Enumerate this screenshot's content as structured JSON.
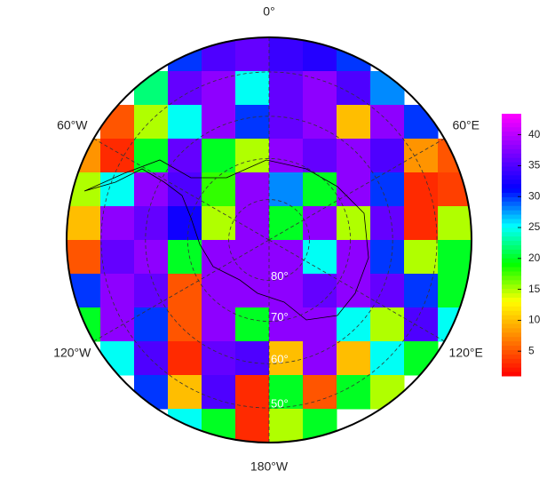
{
  "chart_data": {
    "type": "polar-heatmap",
    "grid": [
      [
        null,
        null,
        null,
        30,
        35,
        36,
        34,
        33,
        30,
        null,
        null,
        null
      ],
      [
        null,
        null,
        22,
        36,
        38,
        25,
        36,
        38,
        35,
        28,
        null,
        null
      ],
      [
        null,
        5,
        15,
        25,
        38,
        30,
        36,
        38,
        10,
        38,
        30,
        null
      ],
      [
        8,
        3,
        20,
        36,
        20,
        15,
        38,
        36,
        38,
        35,
        8,
        5
      ],
      [
        15,
        25,
        38,
        35,
        18,
        38,
        28,
        20,
        38,
        30,
        3,
        4
      ],
      [
        10,
        38,
        36,
        32,
        15,
        38,
        20,
        38,
        15,
        36,
        3,
        15
      ],
      [
        5,
        36,
        38,
        20,
        38,
        38,
        38,
        25,
        38,
        30,
        15,
        20
      ],
      [
        30,
        38,
        36,
        5,
        38,
        38,
        38,
        36,
        38,
        36,
        30,
        20
      ],
      [
        20,
        38,
        30,
        5,
        38,
        20,
        38,
        38,
        25,
        15,
        35,
        25
      ],
      [
        null,
        25,
        35,
        3,
        36,
        35,
        10,
        38,
        10,
        25,
        20,
        null
      ],
      [
        null,
        null,
        30,
        10,
        35,
        3,
        20,
        5,
        20,
        15,
        null,
        null
      ],
      [
        null,
        null,
        null,
        25,
        20,
        3,
        15,
        20,
        null,
        null,
        null,
        null
      ]
    ],
    "zlim": [
      1,
      43.4
    ],
    "zticks": [
      5,
      10,
      15,
      20,
      25,
      30,
      35,
      40
    ],
    "colormap": [
      "#ff0000",
      "#ff8000",
      "#ffff00",
      "#00ff00",
      "#00ffff",
      "#0000ff",
      "#8000ff",
      "#ff00ff"
    ],
    "boundary_lat": -42.6,
    "meridians": [
      {
        "value": 0,
        "label": "0°"
      },
      {
        "value": 60,
        "label": "60°E"
      },
      {
        "value": 120,
        "label": "120°E"
      },
      {
        "value": 180,
        "label": "180°W"
      },
      {
        "value": -120,
        "label": "120°W"
      },
      {
        "value": -60,
        "label": "60°W"
      }
    ],
    "parallels": [
      {
        "value": -80,
        "label": "80°"
      },
      {
        "value": -70,
        "label": "70°"
      },
      {
        "value": -60,
        "label": "60°"
      },
      {
        "value": -50,
        "label": "50°"
      }
    ]
  }
}
